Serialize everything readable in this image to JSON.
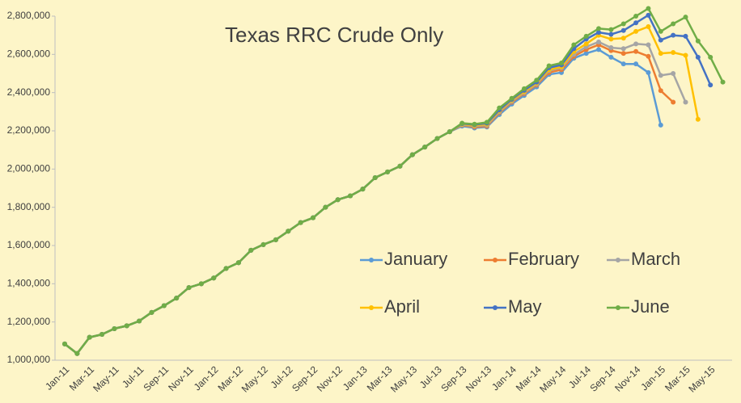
{
  "chart_data": {
    "type": "line",
    "title": "Texas RRC Crude Only",
    "categories": [
      "Jan-11",
      null,
      "Mar-11",
      null,
      "May-11",
      null,
      "Jul-11",
      null,
      "Sep-11",
      null,
      "Nov-11",
      null,
      "Jan-12",
      null,
      "Mar-12",
      null,
      "May-12",
      null,
      "Jul-12",
      null,
      "Sep-12",
      null,
      "Nov-12",
      null,
      "Jan-13",
      null,
      "Mar-13",
      null,
      "May-13",
      null,
      "Jul-13",
      null,
      "Sep-13",
      null,
      "Nov-13",
      null,
      "Jan-14",
      null,
      "Mar-14",
      null,
      "May-14",
      null,
      "Jul-14",
      null,
      "Sep-14",
      null,
      "Nov-14",
      null,
      "Jan-15",
      null,
      "Mar-15",
      null,
      "May-15",
      null
    ],
    "series": [
      {
        "name": "January",
        "color": "#5b9bd5",
        "values": [
          1085000,
          1035000,
          1120000,
          1135000,
          1165000,
          1180000,
          1205000,
          1250000,
          1285000,
          1325000,
          1380000,
          1400000,
          1430000,
          1480000,
          1510000,
          1575000,
          1605000,
          1630000,
          1675000,
          1720000,
          1745000,
          1800000,
          1840000,
          1860000,
          1895000,
          1955000,
          1985000,
          2015000,
          2075000,
          2115000,
          2160000,
          2195000,
          2225000,
          2215000,
          2220000,
          2285000,
          2340000,
          2385000,
          2430000,
          2495000,
          2505000,
          2580000,
          2605000,
          2625000,
          2585000,
          2550000,
          2550000,
          2505000,
          2230000,
          null,
          null,
          null,
          null,
          null
        ]
      },
      {
        "name": "February",
        "color": "#ed7d31",
        "values": [
          1085000,
          1035000,
          1120000,
          1135000,
          1165000,
          1180000,
          1205000,
          1250000,
          1285000,
          1325000,
          1380000,
          1400000,
          1430000,
          1480000,
          1510000,
          1575000,
          1605000,
          1630000,
          1675000,
          1720000,
          1745000,
          1800000,
          1840000,
          1860000,
          1895000,
          1955000,
          1985000,
          2015000,
          2075000,
          2115000,
          2160000,
          2195000,
          2230000,
          2220000,
          2225000,
          2295000,
          2350000,
          2395000,
          2440000,
          2505000,
          2520000,
          2590000,
          2625000,
          2650000,
          2620000,
          2605000,
          2615000,
          2590000,
          2410000,
          2350000,
          null,
          null,
          null,
          null
        ]
      },
      {
        "name": "March",
        "color": "#a5a5a5",
        "values": [
          1085000,
          1035000,
          1120000,
          1135000,
          1165000,
          1180000,
          1205000,
          1250000,
          1285000,
          1325000,
          1380000,
          1400000,
          1430000,
          1480000,
          1510000,
          1575000,
          1605000,
          1630000,
          1675000,
          1720000,
          1745000,
          1800000,
          1840000,
          1860000,
          1895000,
          1955000,
          1985000,
          2015000,
          2075000,
          2115000,
          2160000,
          2195000,
          2232000,
          2225000,
          2230000,
          2300000,
          2355000,
          2400000,
          2445000,
          2515000,
          2530000,
          2600000,
          2640000,
          2665000,
          2635000,
          2630000,
          2655000,
          2650000,
          2490000,
          2500000,
          2350000,
          null,
          null,
          null
        ]
      },
      {
        "name": "April",
        "color": "#ffc000",
        "values": [
          1085000,
          1035000,
          1120000,
          1135000,
          1165000,
          1180000,
          1205000,
          1250000,
          1285000,
          1325000,
          1380000,
          1400000,
          1430000,
          1480000,
          1510000,
          1575000,
          1605000,
          1630000,
          1675000,
          1720000,
          1745000,
          1800000,
          1840000,
          1860000,
          1895000,
          1955000,
          1985000,
          2015000,
          2075000,
          2115000,
          2160000,
          2195000,
          2235000,
          2228000,
          2235000,
          2305000,
          2360000,
          2405000,
          2450000,
          2520000,
          2535000,
          2615000,
          2655000,
          2700000,
          2680000,
          2685000,
          2720000,
          2745000,
          2605000,
          2610000,
          2595000,
          2260000,
          null,
          null
        ]
      },
      {
        "name": "May",
        "color": "#4472c4",
        "values": [
          1085000,
          1035000,
          1120000,
          1135000,
          1165000,
          1180000,
          1205000,
          1250000,
          1285000,
          1325000,
          1380000,
          1400000,
          1430000,
          1480000,
          1510000,
          1575000,
          1605000,
          1630000,
          1675000,
          1720000,
          1745000,
          1800000,
          1840000,
          1860000,
          1895000,
          1955000,
          1985000,
          2015000,
          2075000,
          2115000,
          2160000,
          2195000,
          2238000,
          2232000,
          2240000,
          2310000,
          2365000,
          2412000,
          2455000,
          2530000,
          2545000,
          2630000,
          2680000,
          2715000,
          2705000,
          2725000,
          2765000,
          2805000,
          2675000,
          2700000,
          2695000,
          2585000,
          2440000,
          null
        ]
      },
      {
        "name": "June",
        "color": "#70ad47",
        "values": [
          1085000,
          1035000,
          1120000,
          1135000,
          1165000,
          1180000,
          1205000,
          1250000,
          1285000,
          1325000,
          1380000,
          1400000,
          1430000,
          1480000,
          1510000,
          1575000,
          1605000,
          1630000,
          1675000,
          1720000,
          1745000,
          1800000,
          1840000,
          1860000,
          1895000,
          1955000,
          1985000,
          2015000,
          2075000,
          2115000,
          2160000,
          2195000,
          2240000,
          2235000,
          2245000,
          2320000,
          2370000,
          2420000,
          2465000,
          2540000,
          2555000,
          2650000,
          2695000,
          2735000,
          2730000,
          2760000,
          2800000,
          2840000,
          2720000,
          2760000,
          2795000,
          2670000,
          2585000,
          2455000
        ]
      }
    ],
    "ylim": [
      1000000,
      2800000
    ],
    "yticks": [
      {
        "value": 1000000,
        "label": "1,000,000"
      },
      {
        "value": 1200000,
        "label": "1,200,000"
      },
      {
        "value": 1400000,
        "label": "1,400,000"
      },
      {
        "value": 1600000,
        "label": "1,600,000"
      },
      {
        "value": 1800000,
        "label": "1,800,000"
      },
      {
        "value": 2000000,
        "label": "2,000,000"
      },
      {
        "value": 2200000,
        "label": "2,200,000"
      },
      {
        "value": 2400000,
        "label": "2,400,000"
      },
      {
        "value": 2600000,
        "label": "2,600,000"
      },
      {
        "value": 2800000,
        "label": "2,800,000"
      }
    ],
    "grid": false
  }
}
